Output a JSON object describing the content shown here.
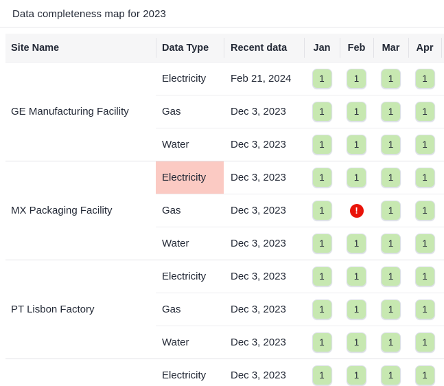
{
  "title": "Data completeness map for 2023",
  "icons": {
    "error_glyph": "!"
  },
  "colors": {
    "complete_badge_bg": "#c7e8b1",
    "highlight_cell_bg": "#fbcac3",
    "error_icon_bg": "#e91309",
    "text": "#232936",
    "header_bg": "#f6f6f7"
  },
  "table": {
    "columns": [
      {
        "key": "site",
        "label": "Site Name"
      },
      {
        "key": "type",
        "label": "Data Type"
      },
      {
        "key": "recent",
        "label": "Recent data"
      },
      {
        "key": "jan",
        "label": "Jan"
      },
      {
        "key": "feb",
        "label": "Feb"
      },
      {
        "key": "mar",
        "label": "Mar"
      },
      {
        "key": "apr",
        "label": "Apr"
      }
    ],
    "groups": [
      {
        "site": "GE Manufacturing Facility",
        "rows": [
          {
            "data_type": "Electricity",
            "highlight": false,
            "recent_data": "Feb 21, 2024",
            "months": [
              {
                "status": "complete",
                "value": "1"
              },
              {
                "status": "complete",
                "value": "1"
              },
              {
                "status": "complete",
                "value": "1"
              },
              {
                "status": "complete",
                "value": "1"
              }
            ]
          },
          {
            "data_type": "Gas",
            "highlight": false,
            "recent_data": "Dec 3, 2023",
            "months": [
              {
                "status": "complete",
                "value": "1"
              },
              {
                "status": "complete",
                "value": "1"
              },
              {
                "status": "complete",
                "value": "1"
              },
              {
                "status": "complete",
                "value": "1"
              }
            ]
          },
          {
            "data_type": "Water",
            "highlight": false,
            "recent_data": "Dec 3, 2023",
            "months": [
              {
                "status": "complete",
                "value": "1"
              },
              {
                "status": "complete",
                "value": "1"
              },
              {
                "status": "complete",
                "value": "1"
              },
              {
                "status": "complete",
                "value": "1"
              }
            ]
          }
        ]
      },
      {
        "site": "MX Packaging Facility",
        "rows": [
          {
            "data_type": "Electricity",
            "highlight": true,
            "recent_data": "Dec 3, 2023",
            "months": [
              {
                "status": "complete",
                "value": "1"
              },
              {
                "status": "complete",
                "value": "1"
              },
              {
                "status": "complete",
                "value": "1"
              },
              {
                "status": "complete",
                "value": "1"
              }
            ]
          },
          {
            "data_type": "Gas",
            "highlight": false,
            "recent_data": "Dec 3, 2023",
            "months": [
              {
                "status": "complete",
                "value": "1"
              },
              {
                "status": "error"
              },
              {
                "status": "complete",
                "value": "1"
              },
              {
                "status": "complete",
                "value": "1"
              }
            ]
          },
          {
            "data_type": "Water",
            "highlight": false,
            "recent_data": "Dec 3, 2023",
            "months": [
              {
                "status": "complete",
                "value": "1"
              },
              {
                "status": "complete",
                "value": "1"
              },
              {
                "status": "complete",
                "value": "1"
              },
              {
                "status": "complete",
                "value": "1"
              }
            ]
          }
        ]
      },
      {
        "site": "PT Lisbon Factory",
        "rows": [
          {
            "data_type": "Electricity",
            "highlight": false,
            "recent_data": "Dec 3, 2023",
            "months": [
              {
                "status": "complete",
                "value": "1"
              },
              {
                "status": "complete",
                "value": "1"
              },
              {
                "status": "complete",
                "value": "1"
              },
              {
                "status": "complete",
                "value": "1"
              }
            ]
          },
          {
            "data_type": "Gas",
            "highlight": false,
            "recent_data": "Dec 3, 2023",
            "months": [
              {
                "status": "complete",
                "value": "1"
              },
              {
                "status": "complete",
                "value": "1"
              },
              {
                "status": "complete",
                "value": "1"
              },
              {
                "status": "complete",
                "value": "1"
              }
            ]
          },
          {
            "data_type": "Water",
            "highlight": false,
            "recent_data": "Dec 3, 2023",
            "months": [
              {
                "status": "complete",
                "value": "1"
              },
              {
                "status": "complete",
                "value": "1"
              },
              {
                "status": "complete",
                "value": "1"
              },
              {
                "status": "complete",
                "value": "1"
              }
            ]
          }
        ]
      },
      {
        "site": "",
        "rows": [
          {
            "data_type": "Electricity",
            "highlight": false,
            "recent_data": "Dec 3, 2023",
            "months": [
              {
                "status": "complete",
                "value": "1"
              },
              {
                "status": "complete",
                "value": "1"
              },
              {
                "status": "complete",
                "value": "1"
              },
              {
                "status": "complete",
                "value": "1"
              }
            ]
          }
        ]
      }
    ]
  }
}
